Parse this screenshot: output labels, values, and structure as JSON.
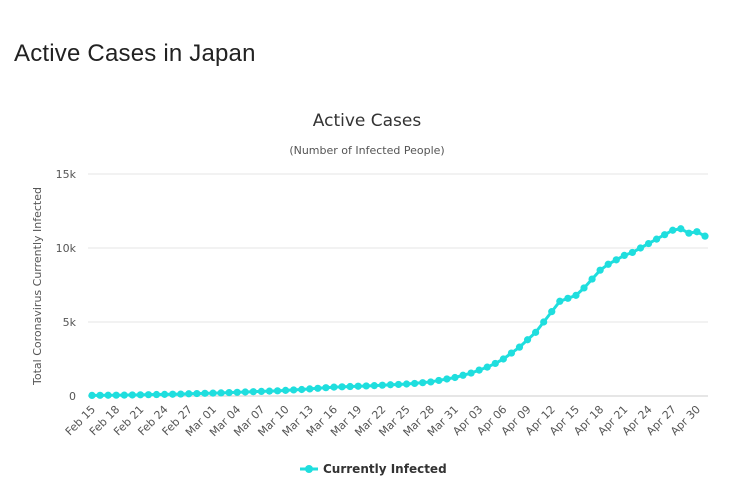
{
  "page": {
    "heading": "Active Cases in Japan"
  },
  "chart_data": {
    "type": "line",
    "title": "Active Cases",
    "subtitle": "(Number of Infected People)",
    "xlabel": "",
    "ylabel": "Total Coronavirus Currently Infected",
    "ylim": [
      0,
      15000
    ],
    "yticks": [
      0,
      5000,
      10000,
      15000
    ],
    "ytick_labels": [
      "0",
      "5k",
      "10k",
      "15k"
    ],
    "x_tick_labels": [
      "Feb 15",
      "Feb 18",
      "Feb 21",
      "Feb 24",
      "Feb 27",
      "Mar 01",
      "Mar 04",
      "Mar 07",
      "Mar 10",
      "Mar 13",
      "Mar 16",
      "Mar 19",
      "Mar 22",
      "Mar 25",
      "Mar 28",
      "Mar 31",
      "Apr 03",
      "Apr 06",
      "Apr 09",
      "Apr 12",
      "Apr 15",
      "Apr 18",
      "Apr 21",
      "Apr 24",
      "Apr 27",
      "Apr 30"
    ],
    "grid": true,
    "legend": "bottom-center",
    "color": "#1fdede",
    "x": [
      "Feb 15",
      "Feb 16",
      "Feb 17",
      "Feb 18",
      "Feb 19",
      "Feb 20",
      "Feb 21",
      "Feb 22",
      "Feb 23",
      "Feb 24",
      "Feb 25",
      "Feb 26",
      "Feb 27",
      "Feb 28",
      "Feb 29",
      "Mar 01",
      "Mar 02",
      "Mar 03",
      "Mar 04",
      "Mar 05",
      "Mar 06",
      "Mar 07",
      "Mar 08",
      "Mar 09",
      "Mar 10",
      "Mar 11",
      "Mar 12",
      "Mar 13",
      "Mar 14",
      "Mar 15",
      "Mar 16",
      "Mar 17",
      "Mar 18",
      "Mar 19",
      "Mar 20",
      "Mar 21",
      "Mar 22",
      "Mar 23",
      "Mar 24",
      "Mar 25",
      "Mar 26",
      "Mar 27",
      "Mar 28",
      "Mar 29",
      "Mar 30",
      "Mar 31",
      "Apr 01",
      "Apr 02",
      "Apr 03",
      "Apr 04",
      "Apr 05",
      "Apr 06",
      "Apr 07",
      "Apr 08",
      "Apr 09",
      "Apr 10",
      "Apr 11",
      "Apr 12",
      "Apr 13",
      "Apr 14",
      "Apr 15",
      "Apr 16",
      "Apr 17",
      "Apr 18",
      "Apr 19",
      "Apr 20",
      "Apr 21",
      "Apr 22",
      "Apr 23",
      "Apr 24",
      "Apr 25",
      "Apr 26",
      "Apr 27",
      "Apr 28",
      "Apr 29",
      "Apr 30",
      "May 01"
    ],
    "series": [
      {
        "name": "Currently Infected",
        "values": [
          40,
          45,
          50,
          55,
          60,
          70,
          80,
          90,
          100,
          110,
          120,
          130,
          150,
          165,
          180,
          195,
          210,
          230,
          250,
          270,
          290,
          310,
          330,
          350,
          380,
          410,
          440,
          480,
          520,
          560,
          600,
          620,
          640,
          660,
          680,
          700,
          730,
          760,
          780,
          810,
          850,
          900,
          950,
          1050,
          1150,
          1250,
          1400,
          1550,
          1750,
          1950,
          2200,
          2500,
          2900,
          3300,
          3800,
          4300,
          5000,
          5700,
          6400,
          6600,
          6800,
          7300,
          7900,
          8500,
          8900,
          9200,
          9500,
          9700,
          10000,
          10300,
          10600,
          10900,
          11200,
          11300,
          11000,
          11100,
          10800
        ]
      }
    ]
  }
}
